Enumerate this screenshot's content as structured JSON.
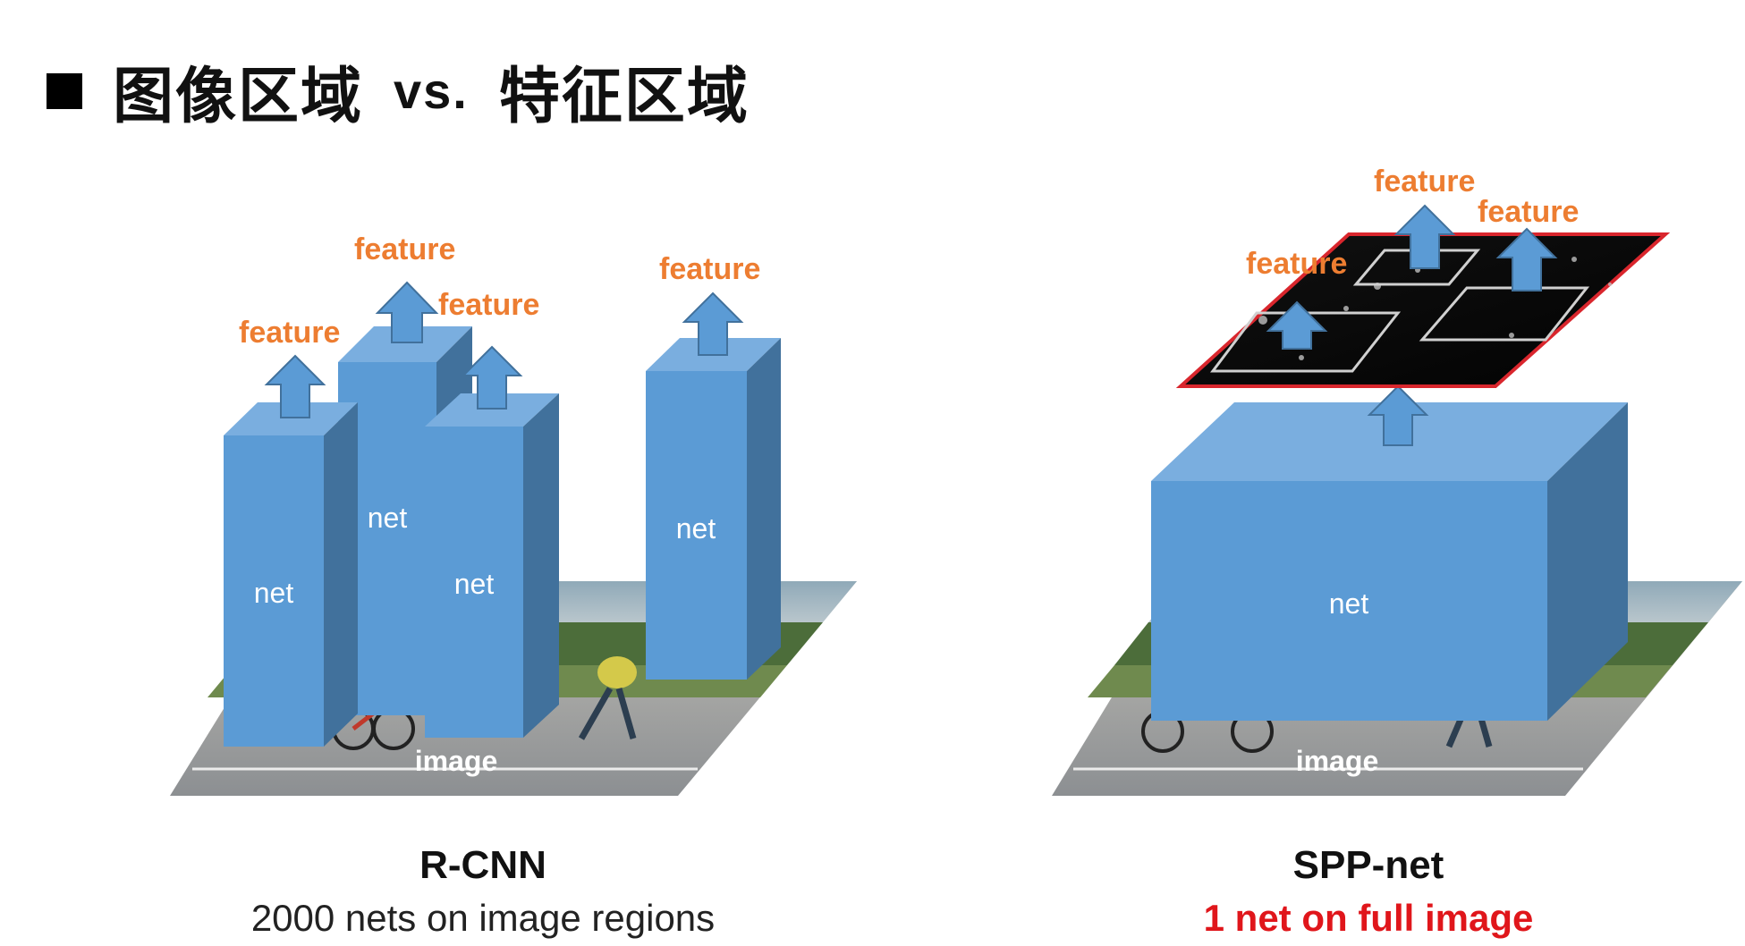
{
  "heading": {
    "bullet_icon": "black-square",
    "part_left": "图像区域",
    "separator": "vs.",
    "part_right": "特征区域"
  },
  "rcnn": {
    "net_label": "net",
    "feature_label": "feature",
    "image_label": "image",
    "title": "R-CNN",
    "subtitle": "2000 nets on image regions"
  },
  "sppnet": {
    "net_label": "net",
    "feature_label": "feature",
    "image_label": "image",
    "title": "SPP-net",
    "subtitle": "1 net on full image"
  },
  "colors": {
    "net_front": "#5b9bd5",
    "net_top": "#7aaedf",
    "net_side": "#41719c",
    "arrow": "#5b9bd5",
    "feature_text": "#ed7d31",
    "feature_map_border": "#d9262d",
    "highlight_subtitle": "#e0161b",
    "normal_subtitle": "#222222"
  }
}
